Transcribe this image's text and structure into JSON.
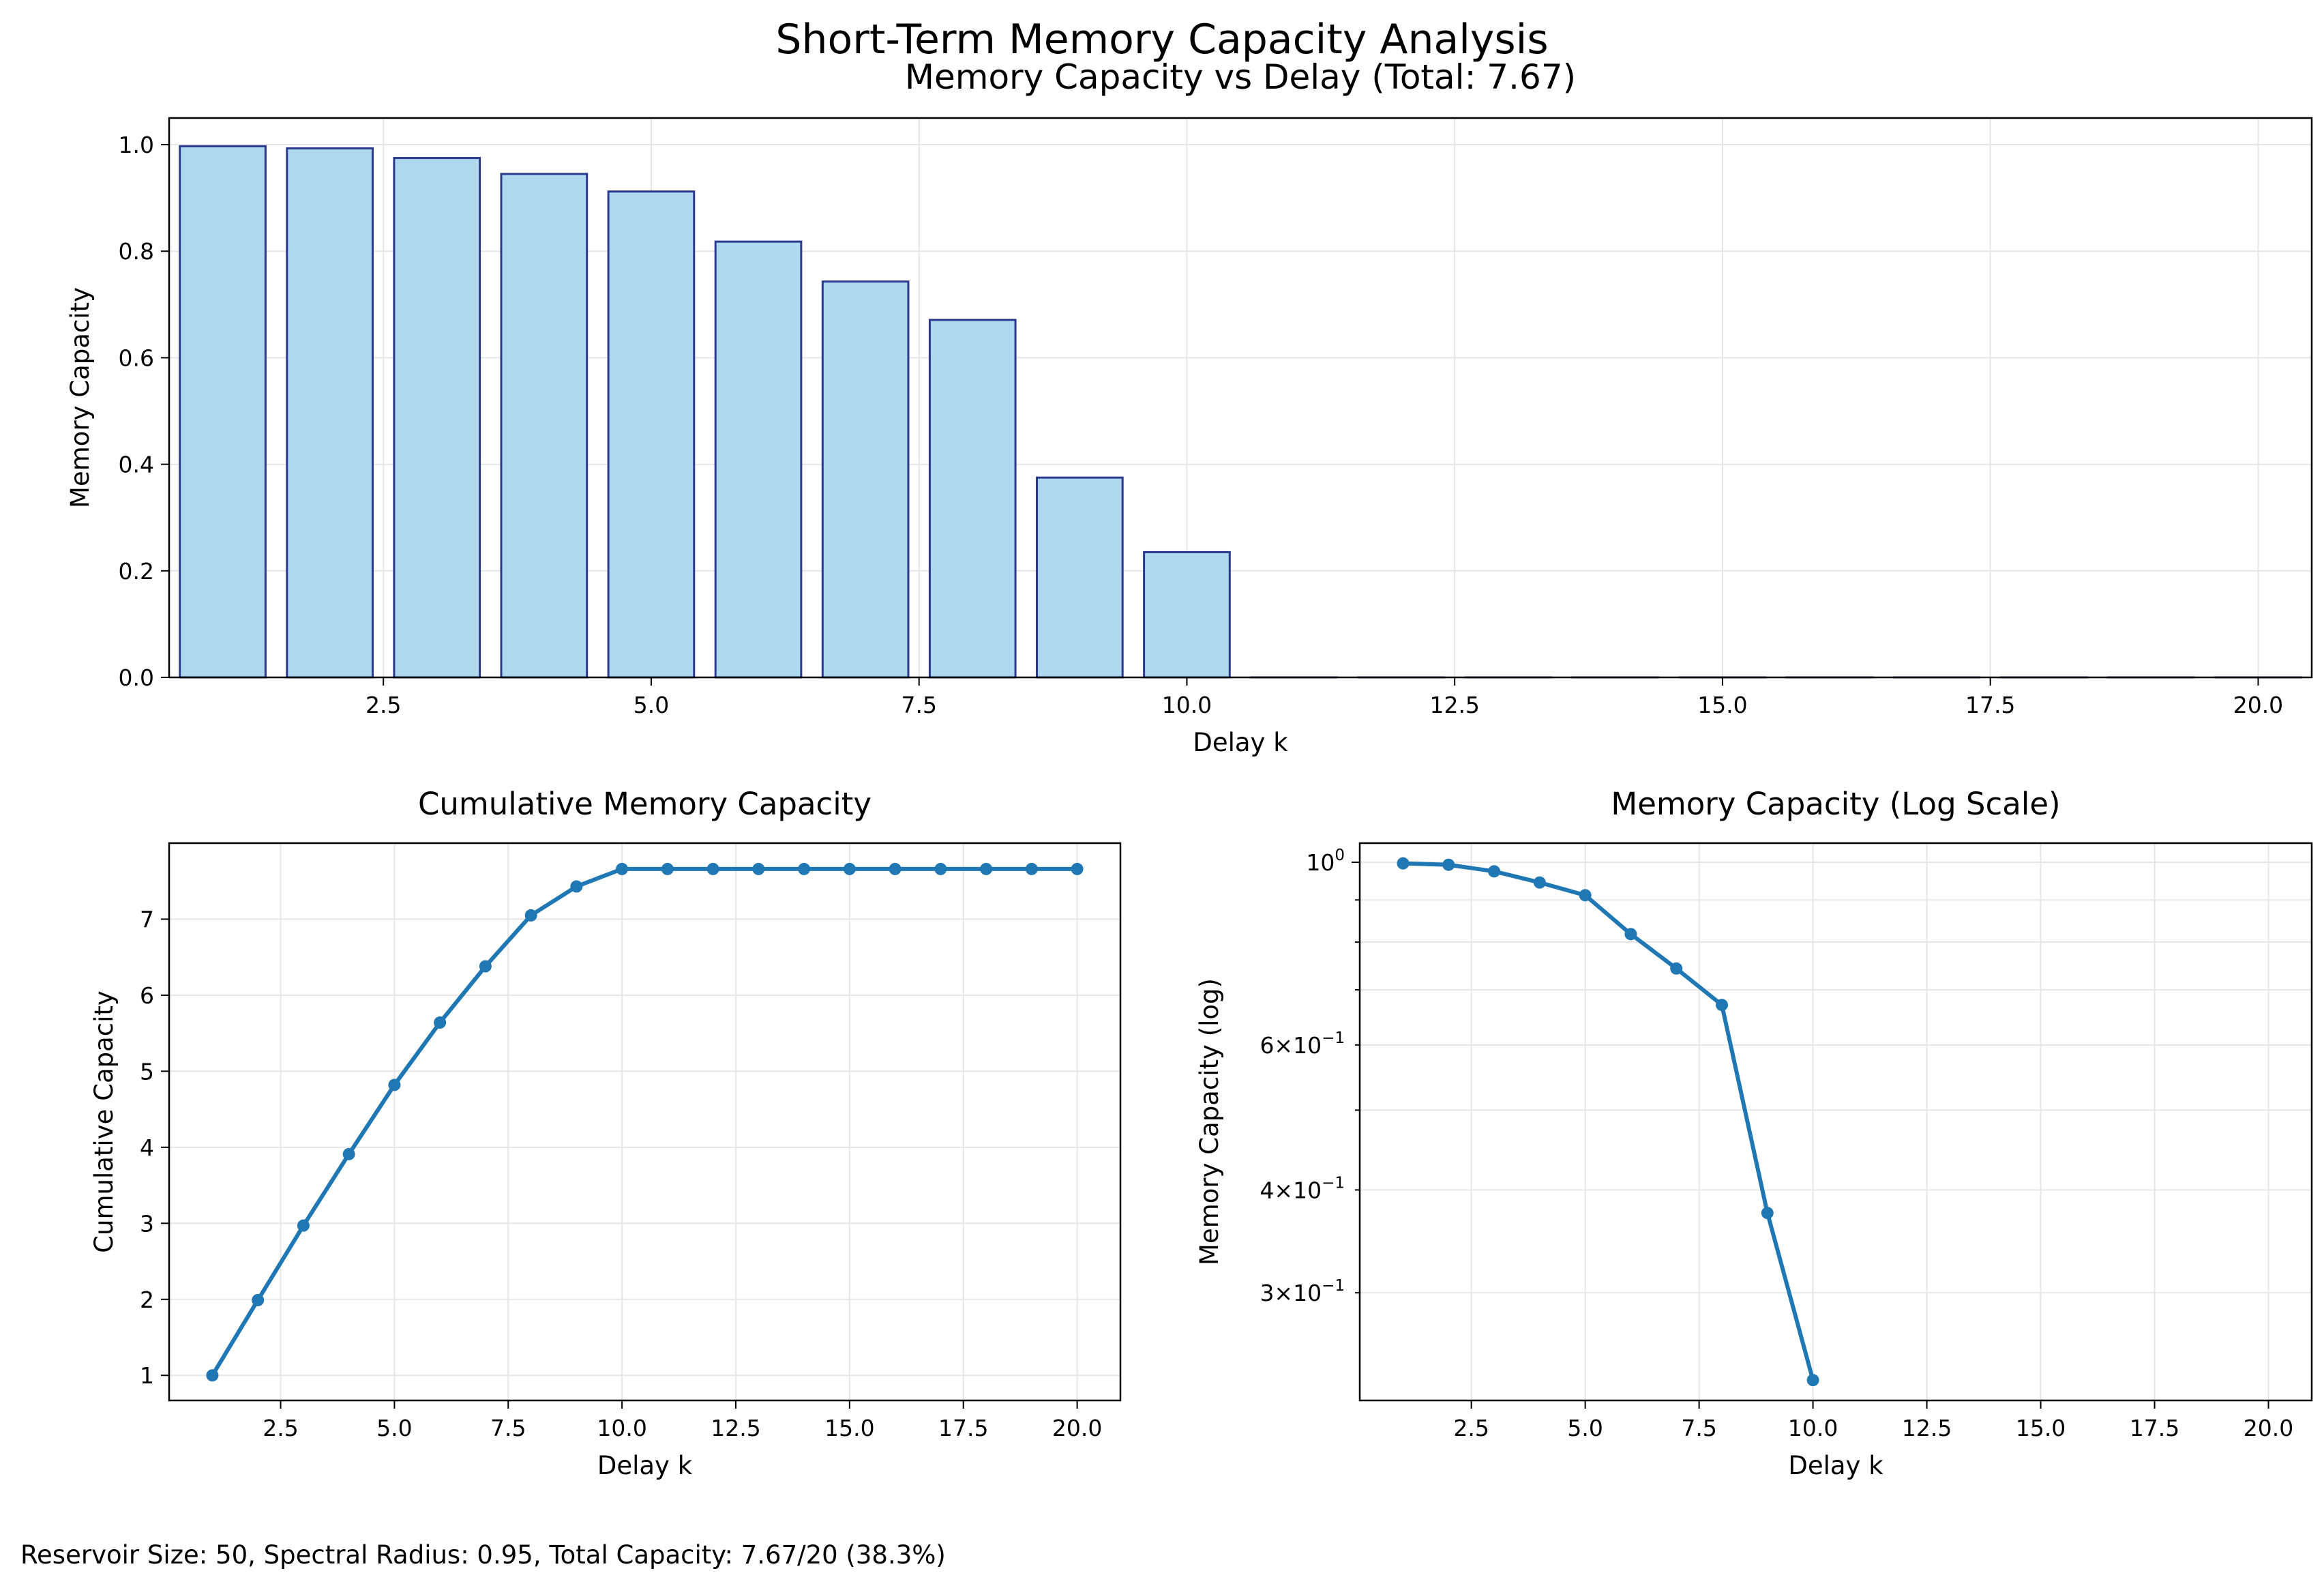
{
  "figure": {
    "suptitle": "Short-Term Memory Capacity Analysis",
    "footer": "Reservoir Size: 50, Spectral Radius: 0.95, Total Capacity: 7.67/20 (38.3%)"
  },
  "colors": {
    "bar_fill": "#add8ee",
    "bar_edge": "#2b3990",
    "line": "#1f77b4",
    "grid": "#e6e6e6"
  },
  "chart_data": [
    {
      "type": "bar",
      "title": "Memory Capacity vs Delay (Total: 7.67)",
      "xlabel": "Delay k",
      "ylabel": "Memory Capacity",
      "x": [
        1,
        2,
        3,
        4,
        5,
        6,
        7,
        8,
        9,
        10,
        11,
        12,
        13,
        14,
        15,
        16,
        17,
        18,
        19,
        20
      ],
      "values": [
        0.997,
        0.993,
        0.975,
        0.945,
        0.912,
        0.818,
        0.743,
        0.671,
        0.375,
        0.235,
        0,
        0,
        0,
        0,
        0,
        0,
        0,
        0,
        0,
        0
      ],
      "xlim": [
        0.5,
        20.5
      ],
      "ylim": [
        0,
        1.05
      ],
      "xticks": [
        2.5,
        5.0,
        7.5,
        10.0,
        12.5,
        15.0,
        17.5,
        20.0
      ],
      "xtick_labels": [
        "2.5",
        "5.0",
        "7.5",
        "10.0",
        "12.5",
        "15.0",
        "17.5",
        "20.0"
      ],
      "yticks": [
        0.0,
        0.2,
        0.4,
        0.6,
        0.8,
        1.0
      ],
      "ytick_labels": [
        "0.0",
        "0.2",
        "0.4",
        "0.6",
        "0.8",
        "1.0"
      ],
      "grid": true
    },
    {
      "type": "line",
      "title": "Cumulative Memory Capacity",
      "xlabel": "Delay k",
      "ylabel": "Cumulative Capacity",
      "x": [
        1,
        2,
        3,
        4,
        5,
        6,
        7,
        8,
        9,
        10,
        11,
        12,
        13,
        14,
        15,
        16,
        17,
        18,
        19,
        20
      ],
      "values": [
        1.0,
        1.99,
        2.97,
        3.91,
        4.82,
        5.64,
        6.38,
        7.05,
        7.43,
        7.66,
        7.66,
        7.66,
        7.66,
        7.66,
        7.66,
        7.66,
        7.66,
        7.66,
        7.66,
        7.66
      ],
      "xlim": [
        0.05,
        20.95
      ],
      "ylim": [
        0.67,
        8.0
      ],
      "xticks": [
        2.5,
        5.0,
        7.5,
        10.0,
        12.5,
        15.0,
        17.5,
        20.0
      ],
      "xtick_labels": [
        "2.5",
        "5.0",
        "7.5",
        "10.0",
        "12.5",
        "15.0",
        "17.5",
        "20.0"
      ],
      "yticks": [
        1,
        2,
        3,
        4,
        5,
        6,
        7
      ],
      "ytick_labels": [
        "1",
        "2",
        "3",
        "4",
        "5",
        "6",
        "7"
      ],
      "grid": true
    },
    {
      "type": "line",
      "scale": "log",
      "title": "Memory Capacity (Log Scale)",
      "xlabel": "Delay k",
      "ylabel": "Memory Capacity (log)",
      "x": [
        1,
        2,
        3,
        4,
        5,
        6,
        7,
        8,
        9,
        10
      ],
      "values": [
        0.997,
        0.993,
        0.975,
        0.945,
        0.912,
        0.818,
        0.743,
        0.671,
        0.375,
        0.235
      ],
      "xlim": [
        0.05,
        20.95
      ],
      "ylim": [
        0.222,
        1.055
      ],
      "xticks": [
        2.5,
        5.0,
        7.5,
        10.0,
        12.5,
        15.0,
        17.5,
        20.0
      ],
      "xtick_labels": [
        "2.5",
        "5.0",
        "7.5",
        "10.0",
        "12.5",
        "15.0",
        "17.5",
        "20.0"
      ],
      "yticks_major": [
        1.0
      ],
      "yticks_minor": [
        0.3,
        0.4,
        0.6
      ],
      "yticks_minor_unlabeled": [
        0.5,
        0.7,
        0.8,
        0.9
      ],
      "ytick_labels": [
        {
          "base": "10",
          "exp": "0",
          "mant": ""
        },
        {
          "base": "10",
          "exp": "−1",
          "mant": "3×"
        },
        {
          "base": "10",
          "exp": "−1",
          "mant": "4×"
        },
        {
          "base": "10",
          "exp": "−1",
          "mant": "6×"
        }
      ],
      "grid": true
    }
  ]
}
